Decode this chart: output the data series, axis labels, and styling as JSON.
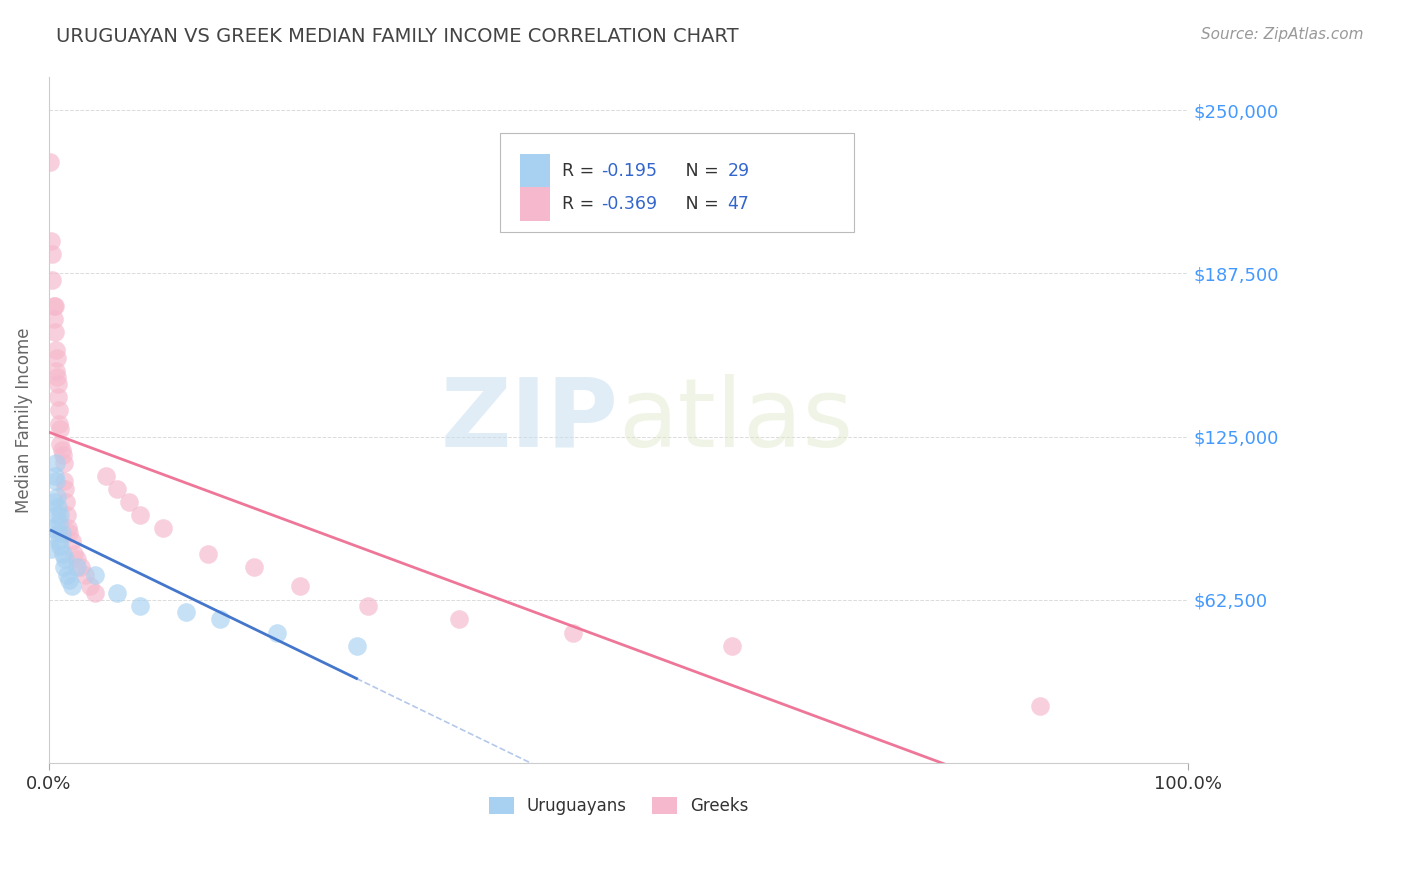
{
  "title": "URUGUAYAN VS GREEK MEDIAN FAMILY INCOME CORRELATION CHART",
  "source": "Source: ZipAtlas.com",
  "ylabel": "Median Family Income",
  "xlabel": "",
  "xlim": [
    0,
    1.0
  ],
  "ylim": [
    0,
    262500
  ],
  "yticks": [
    62500,
    125000,
    187500,
    250000
  ],
  "ytick_labels": [
    "$62,500",
    "$125,000",
    "$187,500",
    "$250,000"
  ],
  "xtick_labels": [
    "0.0%",
    "100.0%"
  ],
  "legend_labels": [
    "Uruguayans",
    "Greeks"
  ],
  "uruguayan_color": "#a8d0f0",
  "greek_color": "#f5b8cc",
  "uruguayan_line_color": "#4477cc",
  "greek_line_color": "#ee7799",
  "r_uruguayan": -0.195,
  "n_uruguayan": 29,
  "r_greek": -0.369,
  "n_greek": 47,
  "uruguayan_x": [
    0.002,
    0.003,
    0.004,
    0.005,
    0.006,
    0.006,
    0.007,
    0.007,
    0.008,
    0.008,
    0.009,
    0.009,
    0.01,
    0.01,
    0.011,
    0.012,
    0.013,
    0.014,
    0.016,
    0.018,
    0.02,
    0.025,
    0.04,
    0.06,
    0.08,
    0.12,
    0.15,
    0.2,
    0.27
  ],
  "uruguayan_y": [
    82000,
    90000,
    100000,
    110000,
    115000,
    108000,
    102000,
    95000,
    98000,
    88000,
    85000,
    92000,
    83000,
    95000,
    88000,
    80000,
    75000,
    78000,
    72000,
    70000,
    68000,
    75000,
    72000,
    65000,
    60000,
    58000,
    55000,
    50000,
    45000
  ],
  "greek_x": [
    0.001,
    0.002,
    0.003,
    0.003,
    0.004,
    0.004,
    0.005,
    0.005,
    0.006,
    0.006,
    0.007,
    0.007,
    0.008,
    0.008,
    0.009,
    0.009,
    0.01,
    0.01,
    0.011,
    0.012,
    0.013,
    0.013,
    0.014,
    0.015,
    0.016,
    0.017,
    0.018,
    0.02,
    0.022,
    0.025,
    0.028,
    0.032,
    0.036,
    0.04,
    0.05,
    0.06,
    0.07,
    0.08,
    0.1,
    0.14,
    0.18,
    0.22,
    0.28,
    0.36,
    0.46,
    0.6,
    0.87
  ],
  "greek_y": [
    230000,
    200000,
    195000,
    185000,
    175000,
    170000,
    165000,
    175000,
    158000,
    150000,
    148000,
    155000,
    145000,
    140000,
    135000,
    130000,
    128000,
    122000,
    120000,
    118000,
    115000,
    108000,
    105000,
    100000,
    95000,
    90000,
    88000,
    85000,
    80000,
    78000,
    75000,
    72000,
    68000,
    65000,
    110000,
    105000,
    100000,
    95000,
    90000,
    80000,
    75000,
    68000,
    60000,
    55000,
    50000,
    45000,
    22000
  ],
  "watermark_zip": "ZIP",
  "watermark_atlas": "atlas",
  "background_color": "#ffffff",
  "grid_color": "#cccccc",
  "title_color": "#444444",
  "axis_label_color": "#666666",
  "tick_label_color": "#4499ff",
  "source_color": "#999999",
  "legend_r_color": "#333333",
  "legend_n_color": "#3366cc"
}
